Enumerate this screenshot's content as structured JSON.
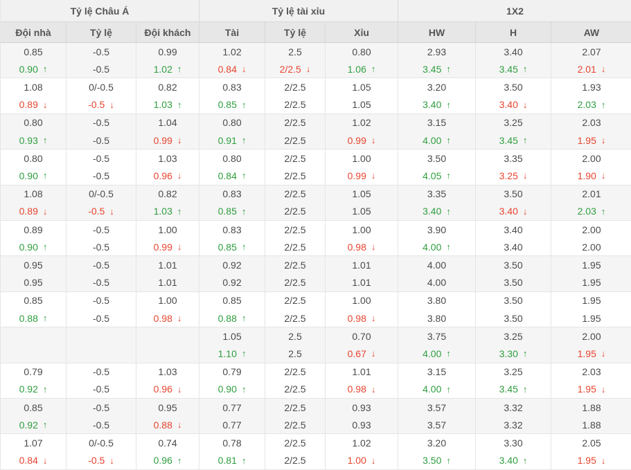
{
  "colors": {
    "up": "#2e9e3e",
    "down": "#e8432e"
  },
  "table": {
    "group_headers": [
      {
        "label": "Tỷ lệ Châu Á"
      },
      {
        "label": "Tỷ lệ tài xỉu"
      },
      {
        "label": "1X2"
      }
    ],
    "column_headers": [
      "Đội nhà",
      "Tỷ lệ",
      "Đội khách",
      "Tài",
      "Tỷ lệ",
      "Xỉu",
      "HW",
      "H",
      "AW"
    ],
    "rows": [
      {
        "lines": [
          [
            [
              "0.85",
              ""
            ],
            [
              "-0.5",
              ""
            ],
            [
              "0.99",
              ""
            ],
            [
              "1.02",
              ""
            ],
            [
              "2.5",
              ""
            ],
            [
              "0.80",
              ""
            ],
            [
              "2.93",
              ""
            ],
            [
              "3.40",
              ""
            ],
            [
              "2.07",
              ""
            ]
          ],
          [
            [
              "0.90",
              "up"
            ],
            [
              "-0.5",
              ""
            ],
            [
              "1.02",
              "up"
            ],
            [
              "0.84",
              "down"
            ],
            [
              "2/2.5",
              "down"
            ],
            [
              "1.06",
              "up"
            ],
            [
              "3.45",
              "up"
            ],
            [
              "3.45",
              "up"
            ],
            [
              "2.01",
              "down"
            ]
          ]
        ]
      },
      {
        "lines": [
          [
            [
              "1.08",
              ""
            ],
            [
              "0/-0.5",
              ""
            ],
            [
              "0.82",
              ""
            ],
            [
              "0.83",
              ""
            ],
            [
              "2/2.5",
              ""
            ],
            [
              "1.05",
              ""
            ],
            [
              "3.20",
              ""
            ],
            [
              "3.50",
              ""
            ],
            [
              "1.93",
              ""
            ]
          ],
          [
            [
              "0.89",
              "down"
            ],
            [
              "-0.5",
              "down"
            ],
            [
              "1.03",
              "up"
            ],
            [
              "0.85",
              "up"
            ],
            [
              "2/2.5",
              ""
            ],
            [
              "1.05",
              ""
            ],
            [
              "3.40",
              "up"
            ],
            [
              "3.40",
              "down"
            ],
            [
              "2.03",
              "up"
            ]
          ]
        ]
      },
      {
        "lines": [
          [
            [
              "0.80",
              ""
            ],
            [
              "-0.5",
              ""
            ],
            [
              "1.04",
              ""
            ],
            [
              "0.80",
              ""
            ],
            [
              "2/2.5",
              ""
            ],
            [
              "1.02",
              ""
            ],
            [
              "3.15",
              ""
            ],
            [
              "3.25",
              ""
            ],
            [
              "2.03",
              ""
            ]
          ],
          [
            [
              "0.93",
              "up"
            ],
            [
              "-0.5",
              ""
            ],
            [
              "0.99",
              "down"
            ],
            [
              "0.91",
              "up"
            ],
            [
              "2/2.5",
              ""
            ],
            [
              "0.99",
              "down"
            ],
            [
              "4.00",
              "up"
            ],
            [
              "3.45",
              "up"
            ],
            [
              "1.95",
              "down"
            ]
          ]
        ]
      },
      {
        "lines": [
          [
            [
              "0.80",
              ""
            ],
            [
              "-0.5",
              ""
            ],
            [
              "1.03",
              ""
            ],
            [
              "0.80",
              ""
            ],
            [
              "2/2.5",
              ""
            ],
            [
              "1.00",
              ""
            ],
            [
              "3.50",
              ""
            ],
            [
              "3.35",
              ""
            ],
            [
              "2.00",
              ""
            ]
          ],
          [
            [
              "0.90",
              "up"
            ],
            [
              "-0.5",
              ""
            ],
            [
              "0.96",
              "down"
            ],
            [
              "0.84",
              "up"
            ],
            [
              "2/2.5",
              ""
            ],
            [
              "0.99",
              "down"
            ],
            [
              "4.05",
              "up"
            ],
            [
              "3.25",
              "down"
            ],
            [
              "1.90",
              "down"
            ]
          ]
        ]
      },
      {
        "lines": [
          [
            [
              "1.08",
              ""
            ],
            [
              "0/-0.5",
              ""
            ],
            [
              "0.82",
              ""
            ],
            [
              "0.83",
              ""
            ],
            [
              "2/2.5",
              ""
            ],
            [
              "1.05",
              ""
            ],
            [
              "3.35",
              ""
            ],
            [
              "3.50",
              ""
            ],
            [
              "2.01",
              ""
            ]
          ],
          [
            [
              "0.89",
              "down"
            ],
            [
              "-0.5",
              "down"
            ],
            [
              "1.03",
              "up"
            ],
            [
              "0.85",
              "up"
            ],
            [
              "2/2.5",
              ""
            ],
            [
              "1.05",
              ""
            ],
            [
              "3.40",
              "up"
            ],
            [
              "3.40",
              "down"
            ],
            [
              "2.03",
              "up"
            ]
          ]
        ]
      },
      {
        "lines": [
          [
            [
              "0.89",
              ""
            ],
            [
              "-0.5",
              ""
            ],
            [
              "1.00",
              ""
            ],
            [
              "0.83",
              ""
            ],
            [
              "2/2.5",
              ""
            ],
            [
              "1.00",
              ""
            ],
            [
              "3.90",
              ""
            ],
            [
              "3.40",
              ""
            ],
            [
              "2.00",
              ""
            ]
          ],
          [
            [
              "0.90",
              "up"
            ],
            [
              "-0.5",
              ""
            ],
            [
              "0.99",
              "down"
            ],
            [
              "0.85",
              "up"
            ],
            [
              "2/2.5",
              ""
            ],
            [
              "0.98",
              "down"
            ],
            [
              "4.00",
              "up"
            ],
            [
              "3.40",
              ""
            ],
            [
              "2.00",
              ""
            ]
          ]
        ]
      },
      {
        "lines": [
          [
            [
              "0.95",
              ""
            ],
            [
              "-0.5",
              ""
            ],
            [
              "1.01",
              ""
            ],
            [
              "0.92",
              ""
            ],
            [
              "2/2.5",
              ""
            ],
            [
              "1.01",
              ""
            ],
            [
              "4.00",
              ""
            ],
            [
              "3.50",
              ""
            ],
            [
              "1.95",
              ""
            ]
          ],
          [
            [
              "0.95",
              ""
            ],
            [
              "-0.5",
              ""
            ],
            [
              "1.01",
              ""
            ],
            [
              "0.92",
              ""
            ],
            [
              "2/2.5",
              ""
            ],
            [
              "1.01",
              ""
            ],
            [
              "4.00",
              ""
            ],
            [
              "3.50",
              ""
            ],
            [
              "1.95",
              ""
            ]
          ]
        ]
      },
      {
        "lines": [
          [
            [
              "0.85",
              ""
            ],
            [
              "-0.5",
              ""
            ],
            [
              "1.00",
              ""
            ],
            [
              "0.85",
              ""
            ],
            [
              "2/2.5",
              ""
            ],
            [
              "1.00",
              ""
            ],
            [
              "3.80",
              ""
            ],
            [
              "3.50",
              ""
            ],
            [
              "1.95",
              ""
            ]
          ],
          [
            [
              "0.88",
              "up"
            ],
            [
              "-0.5",
              ""
            ],
            [
              "0.98",
              "down"
            ],
            [
              "0.88",
              "up"
            ],
            [
              "2/2.5",
              ""
            ],
            [
              "0.98",
              "down"
            ],
            [
              "3.80",
              ""
            ],
            [
              "3.50",
              ""
            ],
            [
              "1.95",
              ""
            ]
          ]
        ]
      },
      {
        "lines": [
          [
            [
              "",
              ""
            ],
            [
              "",
              ""
            ],
            [
              "",
              ""
            ],
            [
              "1.05",
              ""
            ],
            [
              "2.5",
              ""
            ],
            [
              "0.70",
              ""
            ],
            [
              "3.75",
              ""
            ],
            [
              "3.25",
              ""
            ],
            [
              "2.00",
              ""
            ]
          ],
          [
            [
              "",
              ""
            ],
            [
              "",
              ""
            ],
            [
              "",
              ""
            ],
            [
              "1.10",
              "up"
            ],
            [
              "2.5",
              ""
            ],
            [
              "0.67",
              "down"
            ],
            [
              "4.00",
              "up"
            ],
            [
              "3.30",
              "up"
            ],
            [
              "1.95",
              "down"
            ]
          ]
        ]
      },
      {
        "lines": [
          [
            [
              "0.79",
              ""
            ],
            [
              "-0.5",
              ""
            ],
            [
              "1.03",
              ""
            ],
            [
              "0.79",
              ""
            ],
            [
              "2/2.5",
              ""
            ],
            [
              "1.01",
              ""
            ],
            [
              "3.15",
              ""
            ],
            [
              "3.25",
              ""
            ],
            [
              "2.03",
              ""
            ]
          ],
          [
            [
              "0.92",
              "up"
            ],
            [
              "-0.5",
              ""
            ],
            [
              "0.96",
              "down"
            ],
            [
              "0.90",
              "up"
            ],
            [
              "2/2.5",
              ""
            ],
            [
              "0.98",
              "down"
            ],
            [
              "4.00",
              "up"
            ],
            [
              "3.45",
              "up"
            ],
            [
              "1.95",
              "down"
            ]
          ]
        ]
      },
      {
        "lines": [
          [
            [
              "0.85",
              ""
            ],
            [
              "-0.5",
              ""
            ],
            [
              "0.95",
              ""
            ],
            [
              "0.77",
              ""
            ],
            [
              "2/2.5",
              ""
            ],
            [
              "0.93",
              ""
            ],
            [
              "3.57",
              ""
            ],
            [
              "3.32",
              ""
            ],
            [
              "1.88",
              ""
            ]
          ],
          [
            [
              "0.92",
              "up"
            ],
            [
              "-0.5",
              ""
            ],
            [
              "0.88",
              "down"
            ],
            [
              "0.77",
              ""
            ],
            [
              "2/2.5",
              ""
            ],
            [
              "0.93",
              ""
            ],
            [
              "3.57",
              ""
            ],
            [
              "3.32",
              ""
            ],
            [
              "1.88",
              ""
            ]
          ]
        ]
      },
      {
        "lines": [
          [
            [
              "1.07",
              ""
            ],
            [
              "0/-0.5",
              ""
            ],
            [
              "0.74",
              ""
            ],
            [
              "0.78",
              ""
            ],
            [
              "2/2.5",
              ""
            ],
            [
              "1.02",
              ""
            ],
            [
              "3.20",
              ""
            ],
            [
              "3.30",
              ""
            ],
            [
              "2.05",
              ""
            ]
          ],
          [
            [
              "0.84",
              "down"
            ],
            [
              "-0.5",
              "down"
            ],
            [
              "0.96",
              "up"
            ],
            [
              "0.81",
              "up"
            ],
            [
              "2/2.5",
              ""
            ],
            [
              "1.00",
              "down"
            ],
            [
              "3.50",
              "up"
            ],
            [
              "3.40",
              "up"
            ],
            [
              "1.95",
              "down"
            ]
          ]
        ]
      }
    ]
  }
}
